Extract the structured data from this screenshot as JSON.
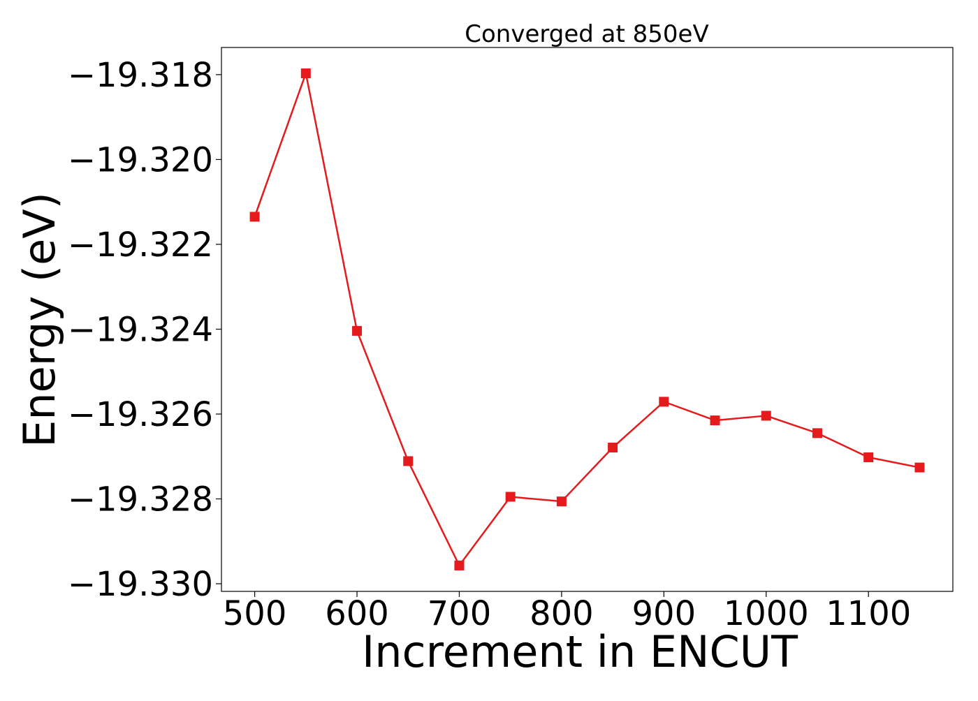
{
  "chart_data": {
    "type": "line",
    "title": "Converged at 850eV",
    "xlabel": "Increment in ENCUT",
    "ylabel": "Energy (eV)",
    "x": [
      500,
      550,
      600,
      650,
      700,
      750,
      800,
      850,
      900,
      950,
      1000,
      1050,
      1100,
      1150
    ],
    "series": [
      {
        "values": [
          -19.32135,
          -19.31797,
          -19.32404,
          -19.32711,
          -19.32957,
          -19.32795,
          -19.32806,
          -19.32679,
          -19.32571,
          -19.32615,
          -19.32604,
          -19.32645,
          -19.32702,
          -19.32726
        ],
        "color": "#e41a1c",
        "marker": "square"
      }
    ],
    "xlim": [
      467.5,
      1182.5
    ],
    "ylim": [
      -19.33018,
      -19.31736
    ],
    "x_ticks": [
      500,
      600,
      700,
      800,
      900,
      1000,
      1100
    ],
    "x_tick_labels": [
      "500",
      "600",
      "700",
      "800",
      "900",
      "1000",
      "1100"
    ],
    "y_ticks": [
      -19.318,
      -19.32,
      -19.322,
      -19.324,
      -19.326,
      -19.328,
      -19.33
    ],
    "y_tick_labels": [
      "−19.318",
      "−19.320",
      "−19.322",
      "−19.324",
      "−19.326",
      "−19.328",
      "−19.330"
    ],
    "grid": false,
    "legend": "none"
  }
}
